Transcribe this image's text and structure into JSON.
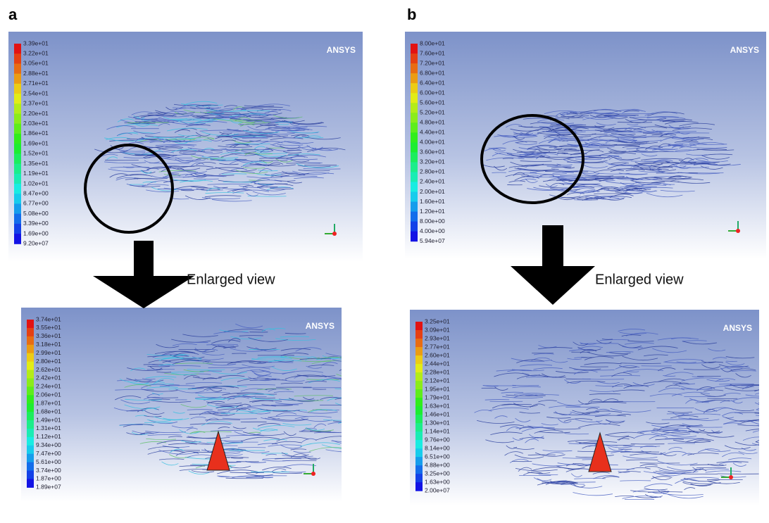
{
  "figure": {
    "panels": [
      {
        "label": "a",
        "enlarged_view": "Enlarged view",
        "top": {
          "logo": "ANSYS",
          "legend": [
            "3.39e+01",
            "3.22e+01",
            "3.05e+01",
            "2.88e+01",
            "2.71e+01",
            "2.54e+01",
            "2.37e+01",
            "2.20e+01",
            "2.03e+01",
            "1.86e+01",
            "1.69e+01",
            "1.52e+01",
            "1.35e+01",
            "1.19e+01",
            "1.02e+01",
            "8.47e+00",
            "6.77e+00",
            "5.08e+00",
            "3.39e+00",
            "1.69e+00",
            "9.20e+07"
          ]
        },
        "bottom": {
          "logo": "ANSYS",
          "legend": [
            "3.74e+01",
            "3.55e+01",
            "3.36e+01",
            "3.18e+01",
            "2.99e+01",
            "2.80e+01",
            "2.62e+01",
            "2.42e+01",
            "2.24e+01",
            "2.06e+01",
            "1.87e+01",
            "1.68e+01",
            "1.49e+01",
            "1.31e+01",
            "1.12e+01",
            "9.34e+00",
            "7.47e+00",
            "5.61e+00",
            "3.74e+00",
            "1.87e+00",
            "1.89e+07"
          ]
        }
      },
      {
        "label": "b",
        "enlarged_view": "Enlarged view",
        "top": {
          "logo": "ANSYS",
          "legend": [
            "8.00e+01",
            "7.60e+01",
            "7.20e+01",
            "6.80e+01",
            "6.40e+01",
            "6.00e+01",
            "5.60e+01",
            "5.20e+01",
            "4.80e+01",
            "4.40e+01",
            "4.00e+01",
            "3.60e+01",
            "3.20e+01",
            "2.80e+01",
            "2.40e+01",
            "2.00e+01",
            "1.60e+01",
            "1.20e+01",
            "8.00e+00",
            "4.00e+00",
            "5.94e+07"
          ]
        },
        "bottom": {
          "logo": "ANSYS",
          "legend": [
            "3.25e+01",
            "3.09e+01",
            "2.93e+01",
            "2.77e+01",
            "2.60e+01",
            "2.44e+01",
            "2.28e+01",
            "2.12e+01",
            "1.95e+01",
            "1.79e+01",
            "1.63e+01",
            "1.46e+01",
            "1.30e+01",
            "1.14e+01",
            "9.76e+00",
            "8.14e+00",
            "6.51e+00",
            "4.88e+00",
            "3.25e+00",
            "1.63e+00",
            "2.00e+07"
          ]
        }
      }
    ]
  }
}
